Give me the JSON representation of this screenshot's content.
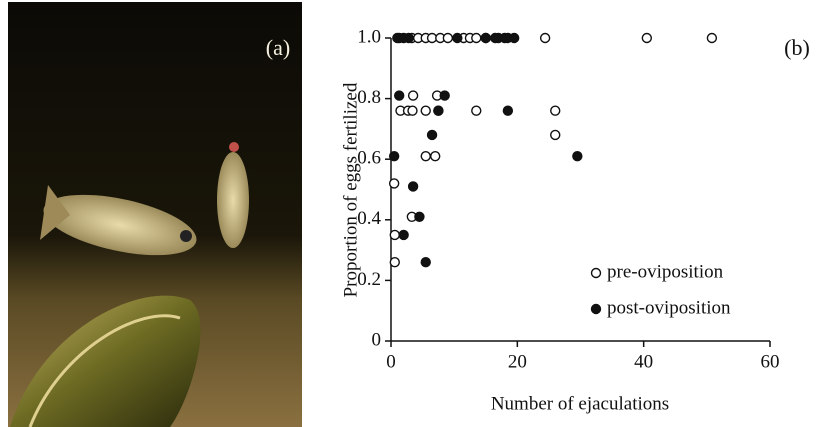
{
  "panel_labels": [
    "(a)",
    "(b)"
  ],
  "chart_data": {
    "type": "scatter",
    "x_label": "Number of ejaculations",
    "y_label": "Proportion of eggs fertilized",
    "xlim": [
      0,
      60
    ],
    "xticks": [
      0,
      20,
      40,
      60
    ],
    "ylim": [
      0,
      1.0
    ],
    "yticks": [
      0,
      0.2,
      0.4,
      0.6,
      0.8,
      {
        "value": 1.0,
        "label": "1.0"
      }
    ],
    "legend": "lower right",
    "series": [
      {
        "name": "pre-oviposition",
        "marker": "open",
        "color": "#111111",
        "x": [
          1.3,
          3.3,
          4.3,
          5.5,
          6.5,
          7.8,
          9,
          11.5,
          12.5,
          13.5,
          15,
          24.4,
          40.5,
          50.8,
          3.5,
          7.3,
          1.5,
          2.7,
          3.4,
          5.5,
          7.5,
          13.5,
          26,
          26,
          5.5,
          7,
          0.5,
          3.3,
          0.6,
          0.6
        ],
        "values": [
          1.0,
          1.0,
          1.0,
          1.0,
          1.0,
          1.0,
          1.0,
          1.0,
          1.0,
          1.0,
          1.0,
          1.0,
          1.0,
          1.0,
          0.81,
          0.81,
          0.76,
          0.76,
          0.76,
          0.76,
          0.76,
          0.76,
          0.76,
          0.68,
          0.61,
          0.61,
          0.52,
          0.41,
          0.35,
          0.26
        ]
      },
      {
        "name": "post-oviposition",
        "marker": "filled",
        "color": "#111111",
        "x": [
          1,
          2,
          2.8,
          10.5,
          15,
          16.5,
          17,
          18,
          18.5,
          19.5,
          1.3,
          8.5,
          7.5,
          18.5,
          6.5,
          0.5,
          29.5,
          3.5,
          4.5,
          2,
          5.5
        ],
        "values": [
          1.0,
          1.0,
          1.0,
          1.0,
          1.0,
          1.0,
          1.0,
          1.0,
          1.0,
          1.0,
          0.81,
          0.81,
          0.76,
          0.76,
          0.68,
          0.61,
          0.61,
          0.51,
          0.41,
          0.35,
          0.26
        ]
      }
    ]
  }
}
